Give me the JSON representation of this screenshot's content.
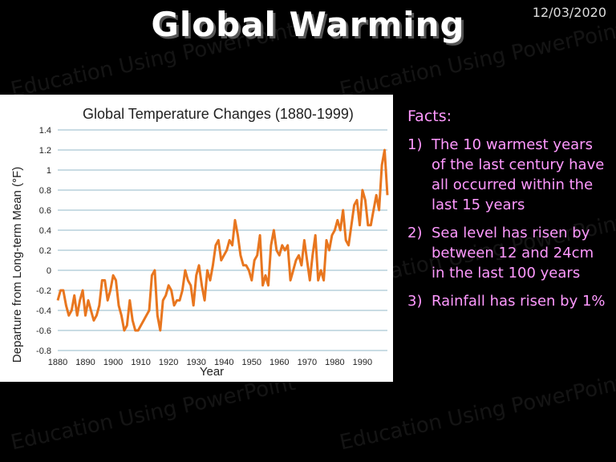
{
  "slide": {
    "title": "Global Warming",
    "date": "12/03/2020",
    "watermark": "Education Using PowerPoint"
  },
  "facts": {
    "heading": "Facts:",
    "items": [
      {
        "num": "1)",
        "text": "The 10 warmest years of the last century have all occurred within the last 15 years"
      },
      {
        "num": "2)",
        "text": "Sea level has risen by between 12 and 24cm in the last 100 years"
      },
      {
        "num": "3)",
        "text": "Rainfall has risen by 1%"
      }
    ]
  },
  "chart_data": {
    "type": "line",
    "title": "Global Temperature Changes (1880-1999)",
    "xlabel": "Year",
    "ylabel": "Departure from Long-term Mean (°F)",
    "xlim": [
      1880,
      1999
    ],
    "ylim": [
      -0.8,
      1.4
    ],
    "xticks": [
      1880,
      1890,
      1900,
      1910,
      1920,
      1930,
      1940,
      1950,
      1960,
      1970,
      1980,
      1990
    ],
    "yticks": [
      -0.8,
      -0.6,
      -0.4,
      -0.2,
      0,
      0.2,
      0.4,
      0.6,
      0.8,
      1,
      1.2,
      1.4
    ],
    "grid": true,
    "line_color": "#e8761f",
    "series": [
      {
        "x": [
          1880,
          1881,
          1882,
          1883,
          1884,
          1885,
          1886,
          1887,
          1888,
          1889,
          1890,
          1891,
          1892,
          1893,
          1894,
          1895,
          1896,
          1897,
          1898,
          1899,
          1900,
          1901,
          1902,
          1903,
          1904,
          1905,
          1906,
          1907,
          1908,
          1909,
          1910,
          1911,
          1912,
          1913,
          1914,
          1915,
          1916,
          1917,
          1918,
          1919,
          1920,
          1921,
          1922,
          1923,
          1924,
          1925,
          1926,
          1927,
          1928,
          1929,
          1930,
          1931,
          1932,
          1933,
          1934,
          1935,
          1936,
          1937,
          1938,
          1939,
          1940,
          1941,
          1942,
          1943,
          1944,
          1945,
          1946,
          1947,
          1948,
          1949,
          1950,
          1951,
          1952,
          1953,
          1954,
          1955,
          1956,
          1957,
          1958,
          1959,
          1960,
          1961,
          1962,
          1963,
          1964,
          1965,
          1966,
          1967,
          1968,
          1969,
          1970,
          1971,
          1972,
          1973,
          1974,
          1975,
          1976,
          1977,
          1978,
          1979,
          1980,
          1981,
          1982,
          1983,
          1984,
          1985,
          1986,
          1987,
          1988,
          1989,
          1990,
          1991,
          1992,
          1993,
          1994,
          1995,
          1996,
          1997,
          1998,
          1999
        ],
        "y": [
          -0.3,
          -0.2,
          -0.2,
          -0.35,
          -0.45,
          -0.4,
          -0.25,
          -0.45,
          -0.3,
          -0.2,
          -0.45,
          -0.3,
          -0.4,
          -0.5,
          -0.45,
          -0.35,
          -0.1,
          -0.1,
          -0.3,
          -0.2,
          -0.05,
          -0.1,
          -0.35,
          -0.45,
          -0.6,
          -0.55,
          -0.3,
          -0.5,
          -0.6,
          -0.6,
          -0.55,
          -0.5,
          -0.45,
          -0.4,
          -0.05,
          0.0,
          -0.45,
          -0.6,
          -0.3,
          -0.25,
          -0.15,
          -0.2,
          -0.35,
          -0.3,
          -0.3,
          -0.2,
          0.0,
          -0.1,
          -0.15,
          -0.35,
          -0.05,
          0.05,
          -0.15,
          -0.3,
          0.0,
          -0.1,
          0.05,
          0.25,
          0.3,
          0.1,
          0.15,
          0.2,
          0.3,
          0.25,
          0.5,
          0.35,
          0.15,
          0.05,
          0.05,
          0.0,
          -0.1,
          0.1,
          0.15,
          0.35,
          -0.15,
          -0.05,
          -0.15,
          0.25,
          0.4,
          0.2,
          0.15,
          0.25,
          0.2,
          0.25,
          -0.1,
          0.0,
          0.1,
          0.15,
          0.05,
          0.3,
          0.1,
          -0.1,
          0.15,
          0.35,
          -0.1,
          0.0,
          -0.1,
          0.3,
          0.2,
          0.35,
          0.4,
          0.5,
          0.4,
          0.6,
          0.3,
          0.25,
          0.45,
          0.65,
          0.7,
          0.45,
          0.8,
          0.7,
          0.45,
          0.45,
          0.6,
          0.75,
          0.6,
          1.05,
          1.2,
          0.75
        ]
      }
    ]
  }
}
